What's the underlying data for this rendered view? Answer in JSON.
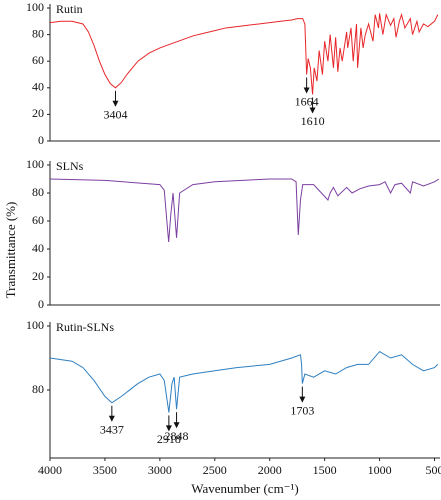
{
  "chart_data": [
    {
      "type": "line",
      "title": "Rutin",
      "color": "#e8262a",
      "x": [
        4000,
        3900,
        3800,
        3700,
        3650,
        3600,
        3550,
        3500,
        3450,
        3404,
        3350,
        3300,
        3200,
        3100,
        3000,
        2900,
        2800,
        2700,
        2600,
        2500,
        2400,
        2300,
        2200,
        2100,
        2000,
        1900,
        1800,
        1750,
        1700,
        1680,
        1664,
        1650,
        1630,
        1610,
        1595,
        1570,
        1550,
        1520,
        1500,
        1470,
        1450,
        1420,
        1400,
        1380,
        1360,
        1340,
        1300,
        1290,
        1260,
        1240,
        1210,
        1200,
        1170,
        1150,
        1130,
        1100,
        1060,
        1040,
        1010,
        1000,
        970,
        940,
        900,
        870,
        850,
        820,
        800,
        770,
        720,
        700,
        660,
        640,
        600,
        560,
        500,
        470
      ],
      "values": [
        89,
        90,
        90,
        88,
        82,
        72,
        60,
        50,
        43,
        40,
        44,
        50,
        60,
        66,
        70,
        73,
        76,
        79,
        81,
        83,
        85,
        86,
        87,
        88,
        89,
        90,
        91,
        92,
        92,
        88,
        50,
        62,
        55,
        35,
        55,
        45,
        68,
        50,
        75,
        60,
        80,
        55,
        78,
        52,
        70,
        60,
        82,
        70,
        85,
        60,
        88,
        55,
        85,
        70,
        80,
        88,
        75,
        95,
        85,
        96,
        80,
        95,
        87,
        92,
        78,
        90,
        95,
        85,
        92,
        80,
        90,
        82,
        88,
        86,
        90,
        95
      ],
      "xlim": [
        4000,
        450
      ],
      "ylim": [
        0,
        100
      ],
      "yticks": [
        0,
        20,
        40,
        60,
        80,
        100
      ],
      "annotations": [
        {
          "label": "3404",
          "x": 3404,
          "y": 40
        },
        {
          "label": "1664",
          "x": 1664,
          "y": 50
        },
        {
          "label": "1610",
          "x": 1610,
          "y": 35
        }
      ]
    },
    {
      "type": "line",
      "title": "SLNs",
      "color": "#7b3fa0",
      "y_label": "Transmittance (%)",
      "x": [
        4000,
        3500,
        3000,
        2960,
        2920,
        2900,
        2880,
        2848,
        2820,
        2700,
        2500,
        2000,
        1800,
        1760,
        1740,
        1720,
        1700,
        1600,
        1470,
        1450,
        1420,
        1380,
        1300,
        1250,
        1180,
        1100,
        1000,
        950,
        900,
        860,
        800,
        720,
        700,
        600,
        500,
        460
      ],
      "values": [
        90,
        89,
        86,
        82,
        45,
        65,
        80,
        48,
        80,
        86,
        88,
        90,
        90,
        88,
        50,
        75,
        86,
        86,
        75,
        80,
        84,
        78,
        84,
        80,
        83,
        85,
        86,
        88,
        80,
        86,
        87,
        80,
        88,
        85,
        88,
        90
      ],
      "xlim": [
        4000,
        450
      ],
      "ylim": [
        0,
        100
      ],
      "yticks": [
        0,
        20,
        40,
        60,
        80,
        100
      ]
    },
    {
      "type": "line",
      "title": "Rutin-SLNs",
      "color": "#2e7fc1",
      "x_label": "Wavenumber (cm⁻¹)",
      "x": [
        4000,
        3800,
        3700,
        3600,
        3500,
        3437,
        3350,
        3200,
        3100,
        3000,
        2960,
        2918,
        2890,
        2870,
        2848,
        2820,
        2700,
        2500,
        2300,
        2000,
        1800,
        1720,
        1710,
        1703,
        1680,
        1600,
        1500,
        1400,
        1300,
        1200,
        1100,
        1000,
        900,
        800,
        700,
        600,
        500,
        470
      ],
      "values": [
        90,
        89,
        87,
        83,
        78,
        76,
        78,
        82,
        84,
        85,
        83,
        73,
        82,
        84,
        74,
        84,
        85,
        86,
        87,
        88,
        90,
        91,
        88,
        82,
        85,
        84,
        86,
        85,
        87,
        88,
        88,
        92,
        90,
        91,
        88,
        86,
        87,
        88
      ],
      "xlim": [
        4000,
        450
      ],
      "ylim": [
        60,
        100
      ],
      "yticks": [
        80,
        100
      ],
      "xticks": [
        4000,
        3500,
        3000,
        2500,
        2000,
        1500,
        1000,
        500
      ],
      "annotations": [
        {
          "label": "3437",
          "x": 3437,
          "y": 76
        },
        {
          "label": "2918",
          "x": 2918,
          "y": 73
        },
        {
          "label": "2848",
          "x": 2848,
          "y": 74
        },
        {
          "label": "1703",
          "x": 1703,
          "y": 82
        }
      ]
    }
  ]
}
